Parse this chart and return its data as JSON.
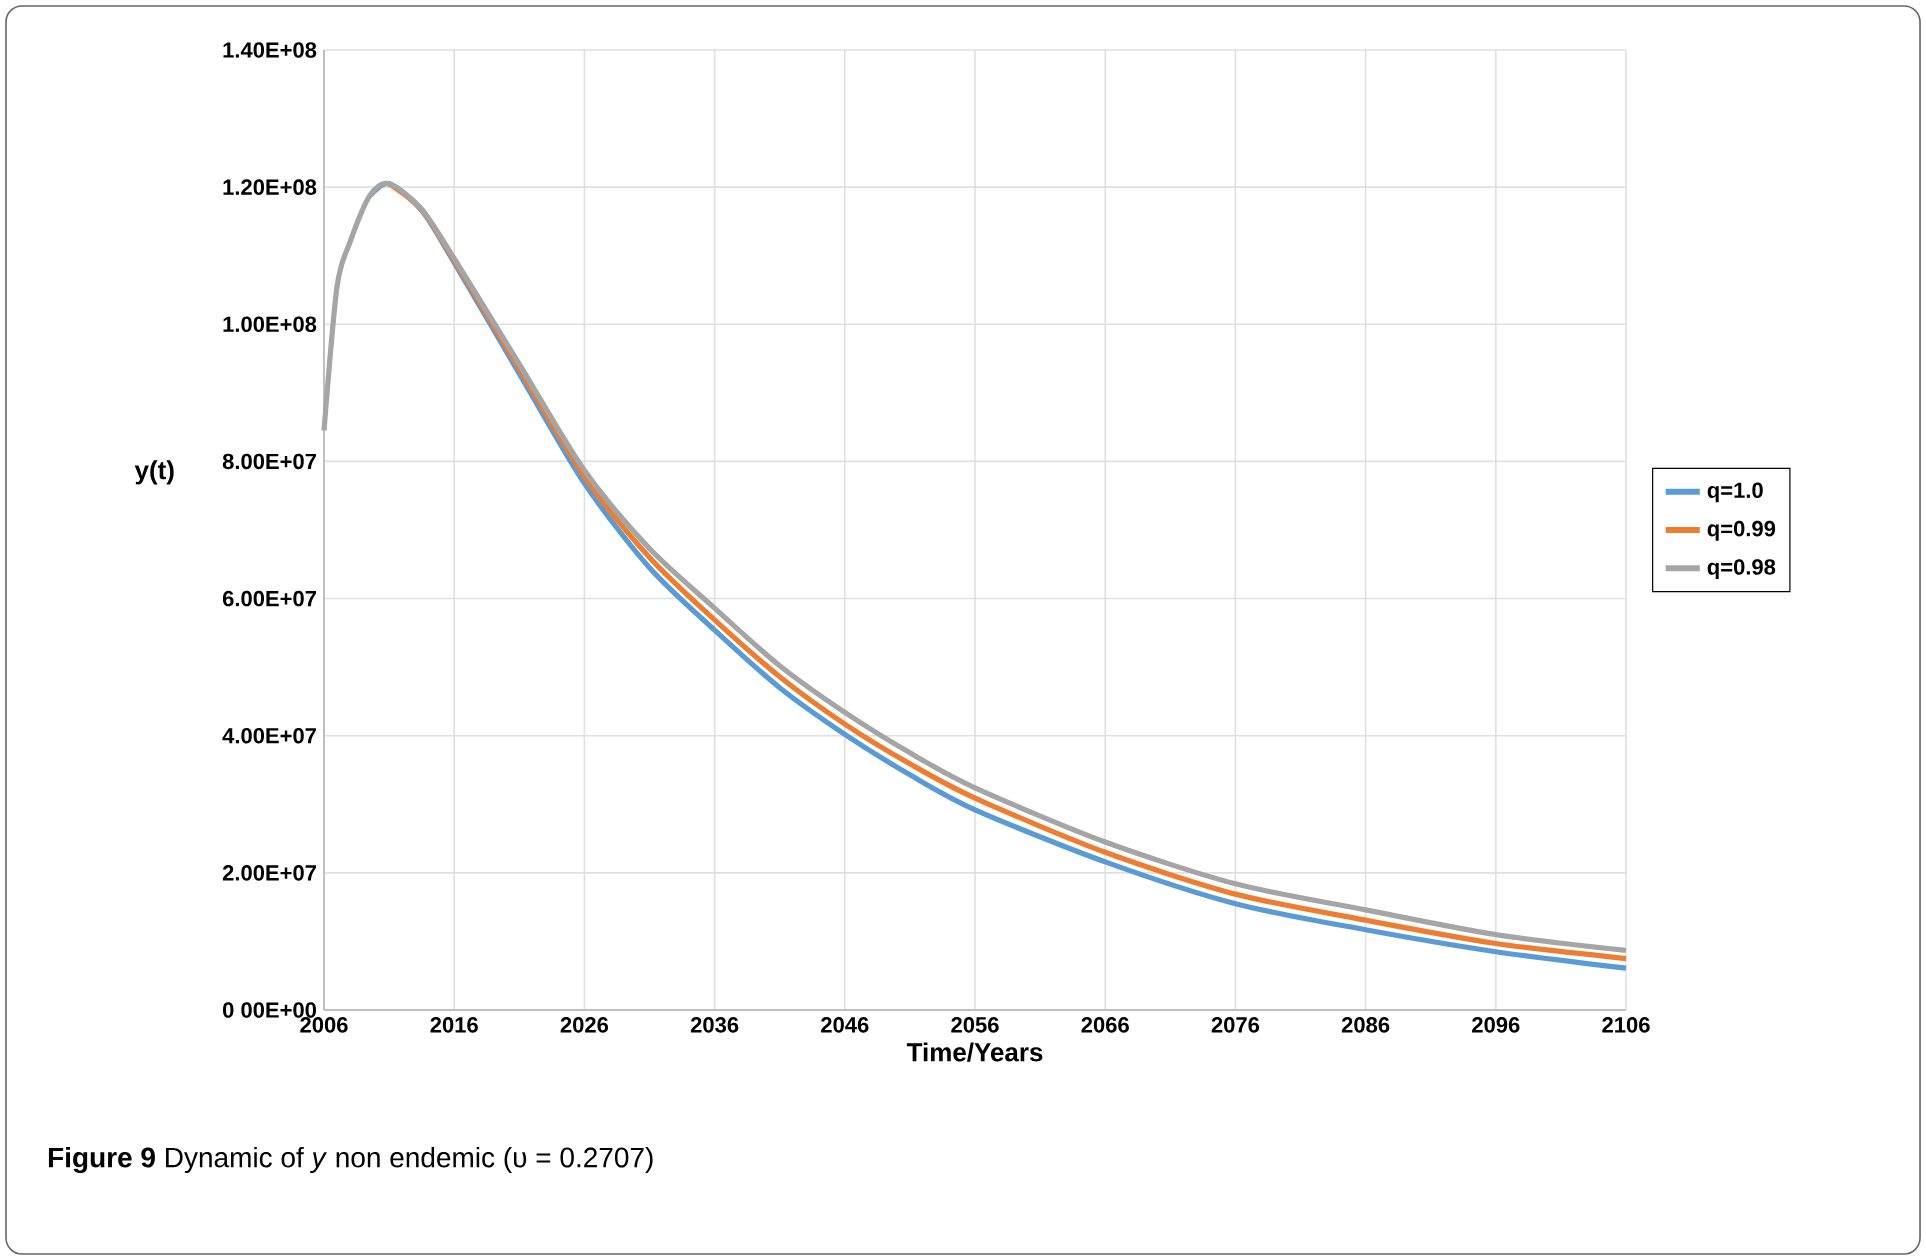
{
  "chart_data": {
    "type": "line",
    "xlabel": "Time/Years",
    "ylabel": "y(t)",
    "annotations": [
      "**Figure 9**  Dynamic of *y* non endemic (υ = 0.2707)"
    ],
    "x": [
      2006,
      2007,
      2008,
      2009.5,
      2011,
      2013.5,
      2016,
      2021,
      2026,
      2031,
      2036,
      2041,
      2046,
      2051,
      2056,
      2066,
      2076,
      2086,
      2096,
      2106
    ],
    "series": [
      {
        "name": "q=1.0",
        "color": "#5b9bd5",
        "values": [
          null,
          null,
          null,
          118700000,
          120500000,
          116600000,
          109000000,
          92800000,
          76800000,
          64500000,
          55400000,
          47000000,
          40200000,
          34300000,
          29200000,
          21600000,
          15500000,
          11700000,
          8500000,
          6100000
        ]
      },
      {
        "name": "q=0.99",
        "color": "#ed7d31",
        "values": [
          null,
          null,
          null,
          null,
          120500000,
          116700000,
          109300000,
          93500000,
          77800000,
          66000000,
          56900000,
          48600000,
          41700000,
          35900000,
          30900000,
          23000000,
          16900000,
          13100000,
          9700000,
          7500000
        ]
      },
      {
        "name": "q=0.98",
        "color": "#a5a5a5",
        "values": [
          84500000,
          105500000,
          112000000,
          118700000,
          120500000,
          116800000,
          109600000,
          94200000,
          78700000,
          67300000,
          58600000,
          50200000,
          43400000,
          37500000,
          32400000,
          24500000,
          18400000,
          14600000,
          11000000,
          8700000
        ]
      }
    ],
    "xlim": [
      2006,
      2106
    ],
    "xticks": [
      2006,
      2016,
      2026,
      2036,
      2046,
      2056,
      2066,
      2076,
      2086,
      2096,
      2106
    ],
    "ylim": [
      0,
      140000000
    ],
    "yticks": [
      {
        "value": 0,
        "label": "0 00E+00"
      },
      {
        "value": 20000000,
        "label": "2.00E+07"
      },
      {
        "value": 40000000,
        "label": "4.00E+07"
      },
      {
        "value": 60000000,
        "label": "6.00E+07"
      },
      {
        "value": 80000000,
        "label": "8.00E+07"
      },
      {
        "value": 100000000,
        "label": "1.00E+08"
      },
      {
        "value": 120000000,
        "label": "1.20E+08"
      },
      {
        "value": 140000000,
        "label": "1.40E+08"
      }
    ],
    "grid": true,
    "legend": "right",
    "marker": "none",
    "line_style": "solid"
  }
}
